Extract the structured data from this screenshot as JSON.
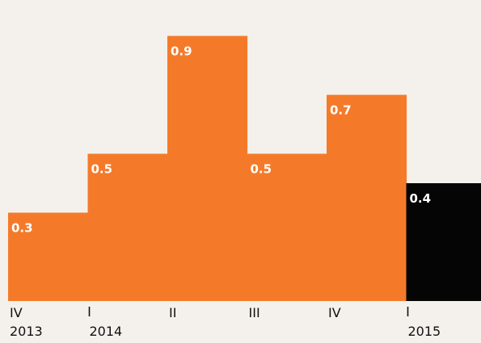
{
  "chart_data": {
    "type": "bar",
    "title": "",
    "xlabel": "",
    "ylabel": "",
    "ylim": [
      0,
      1.0
    ],
    "grid": false,
    "legend": "none",
    "categories": [
      {
        "quarter": "IV",
        "year": "2013"
      },
      {
        "quarter": "I",
        "year": "2014"
      },
      {
        "quarter": "II",
        "year": ""
      },
      {
        "quarter": "III",
        "year": ""
      },
      {
        "quarter": "IV",
        "year": ""
      },
      {
        "quarter": "I",
        "year": "2015"
      }
    ],
    "values": [
      0.3,
      0.5,
      0.9,
      0.5,
      0.7,
      0.4
    ],
    "value_labels": [
      "0.3",
      "0.5",
      "0.9",
      "0.5",
      "0.7",
      "0.4"
    ],
    "colors": [
      "#f47a2a",
      "#f47a2a",
      "#f47a2a",
      "#f47a2a",
      "#f47a2a",
      "#050505"
    ]
  }
}
